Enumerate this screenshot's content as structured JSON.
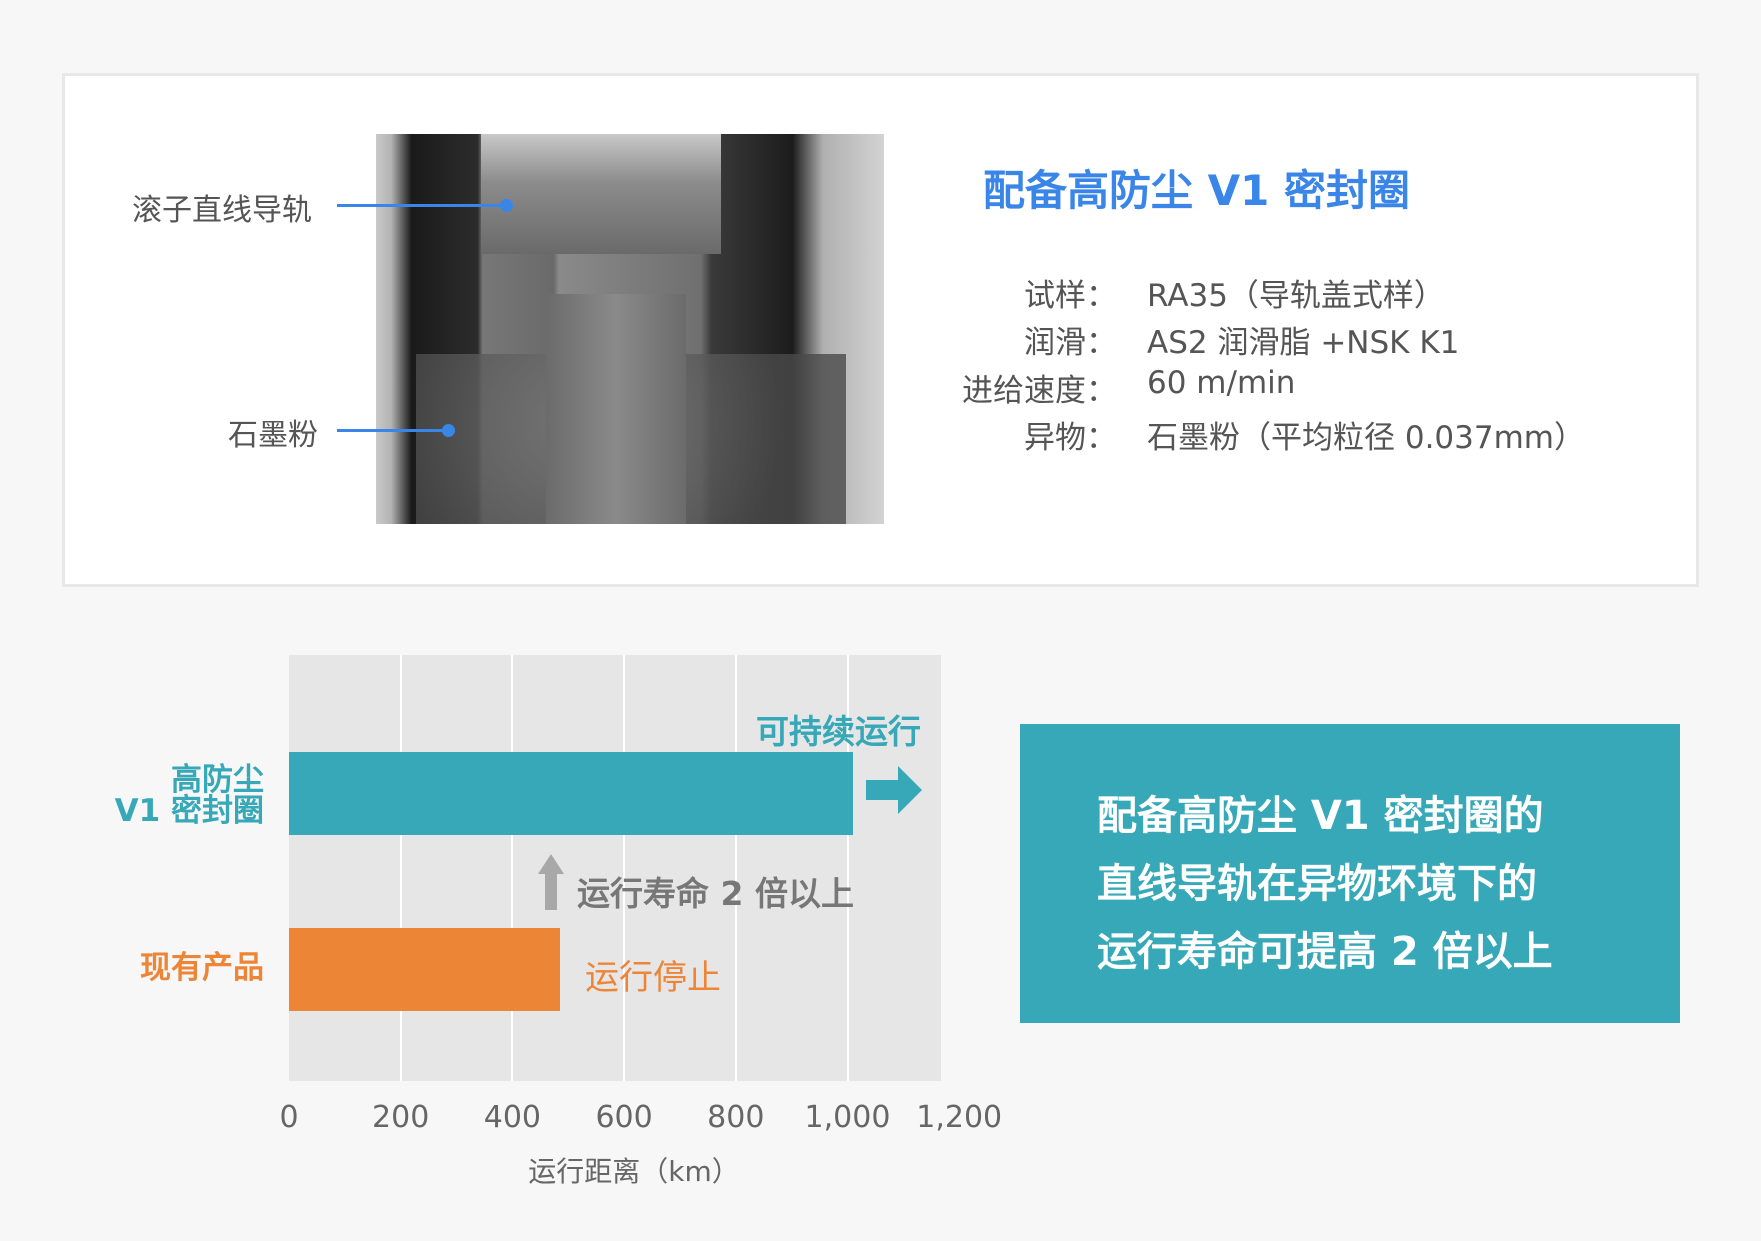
{
  "photo_labels": {
    "rail": "滚子直线导轨",
    "powder": "石墨粉"
  },
  "spec": {
    "title": "配备高防尘 V1 密封圈",
    "rows": [
      {
        "label": "试样：",
        "value": "RA35（导轨盖式样）"
      },
      {
        "label": "润滑：",
        "value": "AS2 润滑脂 +NSK K1"
      },
      {
        "label": "进给速度：",
        "value": "60 m/min"
      },
      {
        "label": "异物：",
        "value": "石墨粉（平均粒径 0.037mm）"
      }
    ]
  },
  "chart_data": {
    "type": "bar",
    "orientation": "horizontal",
    "categories": [
      "高防尘 V1 密封圈",
      "现有产品"
    ],
    "category_lines": [
      [
        "高防尘",
        "V1 密封圈"
      ],
      [
        "现有产品"
      ]
    ],
    "values": [
      1010,
      485
    ],
    "colors": [
      "#36a8b7",
      "#ed8537"
    ],
    "xlabel": "运行距离（km）",
    "xlim": [
      0,
      1200
    ],
    "xticks": [
      "0",
      "200",
      "400",
      "600",
      "800",
      "1,000",
      "1,200"
    ],
    "grid": true,
    "annotations": {
      "continue": "可持续运行",
      "stop": "运行停止",
      "life": "运行寿命 2 倍以上"
    }
  },
  "summary": {
    "lines": [
      "配备高防尘 V1 密封圈的",
      "直线导轨在异物环境下的",
      "运行寿命可提高 2 倍以上"
    ]
  }
}
